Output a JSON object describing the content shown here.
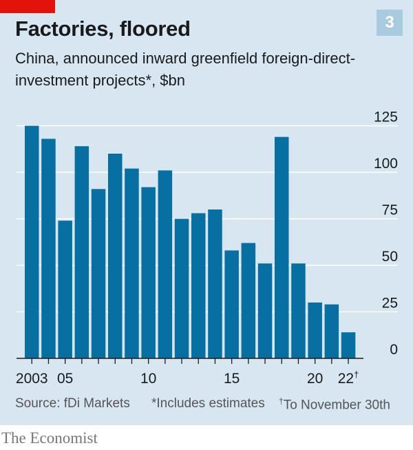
{
  "badge": "3",
  "title": "Factories, floored",
  "subtitle": "China, announced inward greenfield foreign-direct-investment projects*, $bn",
  "chart_data": {
    "type": "bar",
    "title": "Factories, floored",
    "subtitle": "China, announced inward greenfield foreign-direct-investment projects*, $bn",
    "ylabel": "$bn",
    "ylim": [
      0,
      125
    ],
    "yticks": [
      0,
      25,
      50,
      75,
      100,
      125
    ],
    "ytick_labels": [
      "0",
      "25",
      "50",
      "75",
      "100",
      "125"
    ],
    "grid": true,
    "categories": [
      "2003",
      "2004",
      "2005",
      "2006",
      "2007",
      "2008",
      "2009",
      "2010",
      "2011",
      "2012",
      "2013",
      "2014",
      "2015",
      "2016",
      "2017",
      "2018",
      "2019",
      "2020",
      "2021",
      "2022"
    ],
    "values": [
      125,
      118,
      74,
      114,
      91,
      110,
      102,
      92,
      101,
      75,
      78,
      80,
      58,
      62,
      51,
      119,
      51,
      30,
      29,
      14
    ],
    "xtick_labels": [
      {
        "index": 0,
        "label": "2003"
      },
      {
        "index": 2,
        "label": "05"
      },
      {
        "index": 7,
        "label": "10"
      },
      {
        "index": 12,
        "label": "15"
      },
      {
        "index": 17,
        "label": "20"
      },
      {
        "index": 19,
        "label": "22",
        "mark": "†"
      }
    ],
    "bar_color": "#076fa2"
  },
  "footer": {
    "source": "Source: fDi Markets",
    "note_star": "*Includes estimates",
    "note_dagger_mark": "†",
    "note_dagger": "To November 30th"
  },
  "brand": "The Economist",
  "colors": {
    "background": "#d7e6f0",
    "bar": "#076fa2",
    "accent_red": "#e3120b",
    "gridline": "#ffffff",
    "axis": "#1a1a1a"
  }
}
